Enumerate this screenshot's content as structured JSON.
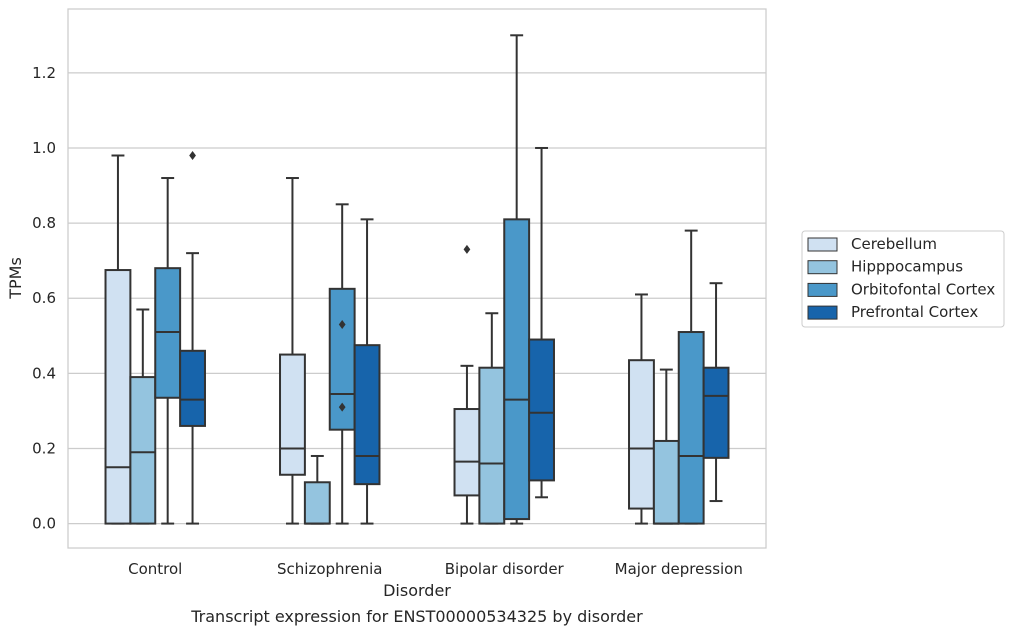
{
  "caption": "Transcript expression for ENST00000534325 by disorder",
  "chart_data": {
    "type": "box",
    "title": "",
    "xlabel": "Disorder",
    "ylabel": "TPMs",
    "ylim": [
      -0.065,
      1.37
    ],
    "yticks": [
      0.0,
      0.2,
      0.4,
      0.6,
      0.8,
      1.0,
      1.2
    ],
    "ytick_labels": [
      "0.0",
      "0.2",
      "0.4",
      "0.6",
      "0.8",
      "1.0",
      "1.2"
    ],
    "grid": "horizontal",
    "legend_position": "right",
    "categories": [
      "Control",
      "Schizophrenia",
      "Bipolar disorder",
      "Major depression"
    ],
    "series": [
      {
        "name": "Cerebellum",
        "color": "#d0e1f2",
        "boxes": [
          {
            "whisker_low": 0.0,
            "q1": 0.0,
            "median": 0.15,
            "q3": 0.675,
            "whisker_high": 0.98,
            "outliers": []
          },
          {
            "whisker_low": 0.0,
            "q1": 0.13,
            "median": 0.2,
            "q3": 0.45,
            "whisker_high": 0.92,
            "outliers": []
          },
          {
            "whisker_low": 0.0,
            "q1": 0.075,
            "median": 0.165,
            "q3": 0.305,
            "whisker_high": 0.42,
            "outliers": [
              0.73
            ]
          },
          {
            "whisker_low": 0.0,
            "q1": 0.04,
            "median": 0.2,
            "q3": 0.435,
            "whisker_high": 0.61,
            "outliers": []
          }
        ]
      },
      {
        "name": "Hipppocampus",
        "color": "#94c4df",
        "boxes": [
          {
            "whisker_low": 0.0,
            "q1": 0.0,
            "median": 0.19,
            "q3": 0.39,
            "whisker_high": 0.57,
            "outliers": []
          },
          {
            "whisker_low": 0.0,
            "q1": 0.0,
            "median": 0.0,
            "q3": 0.11,
            "whisker_high": 0.18,
            "outliers": []
          },
          {
            "whisker_low": 0.0,
            "q1": 0.0,
            "median": 0.16,
            "q3": 0.415,
            "whisker_high": 0.56,
            "outliers": []
          },
          {
            "whisker_low": 0.0,
            "q1": 0.0,
            "median": 0.0,
            "q3": 0.22,
            "whisker_high": 0.41,
            "outliers": []
          }
        ]
      },
      {
        "name": "Orbitofontal Cortex",
        "color": "#4a98c9",
        "boxes": [
          {
            "whisker_low": 0.0,
            "q1": 0.335,
            "median": 0.51,
            "q3": 0.68,
            "whisker_high": 0.92,
            "outliers": []
          },
          {
            "whisker_low": 0.0,
            "q1": 0.25,
            "median": 0.345,
            "q3": 0.625,
            "whisker_high": 0.85,
            "outliers": [
              0.31,
              0.53
            ]
          },
          {
            "whisker_low": 0.0,
            "q1": 0.012,
            "median": 0.33,
            "q3": 0.81,
            "whisker_high": 1.3,
            "outliers": []
          },
          {
            "whisker_low": 0.0,
            "q1": 0.0,
            "median": 0.18,
            "q3": 0.51,
            "whisker_high": 0.78,
            "outliers": []
          }
        ]
      },
      {
        "name": "Prefrontal Cortex",
        "color": "#1764ab",
        "boxes": [
          {
            "whisker_low": 0.0,
            "q1": 0.26,
            "median": 0.33,
            "q3": 0.46,
            "whisker_high": 0.72,
            "outliers": [
              0.98
            ]
          },
          {
            "whisker_low": 0.0,
            "q1": 0.105,
            "median": 0.18,
            "q3": 0.475,
            "whisker_high": 0.81,
            "outliers": []
          },
          {
            "whisker_low": 0.07,
            "q1": 0.115,
            "median": 0.295,
            "q3": 0.49,
            "whisker_high": 1.0,
            "outliers": []
          },
          {
            "whisker_low": 0.06,
            "q1": 0.175,
            "median": 0.34,
            "q3": 0.415,
            "whisker_high": 0.64,
            "outliers": []
          }
        ]
      }
    ]
  }
}
